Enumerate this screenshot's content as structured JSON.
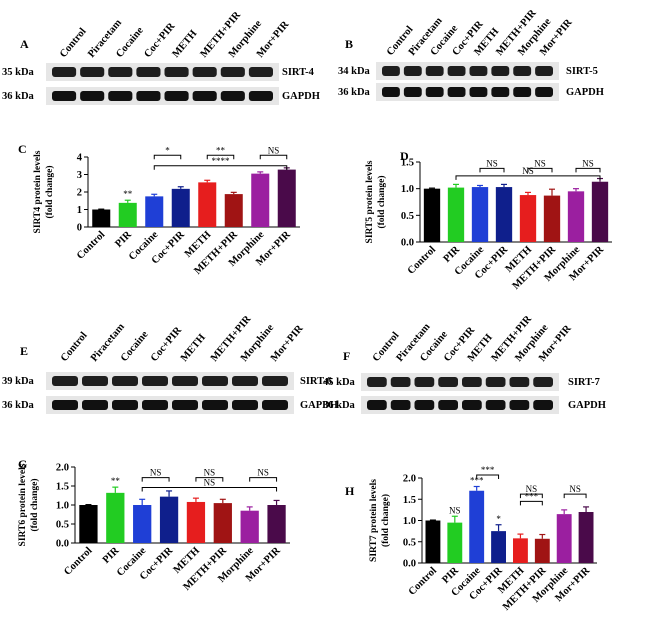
{
  "blots": [
    {
      "letter": "A",
      "lanes": [
        "Control",
        "Piracetam",
        "Cocaine",
        "Coc+PIR",
        "METH",
        "METH+PIR",
        "Morphine",
        "Mor+PIR"
      ],
      "rows": [
        {
          "kda": "35 kDa",
          "protein": "SIRT-4"
        },
        {
          "kda": "36 kDa",
          "protein": "GAPDH"
        }
      ]
    },
    {
      "letter": "B",
      "lanes": [
        "Control",
        "Piracetam",
        "Cocaine",
        "Coc+PIR",
        "METH",
        "METH+PIR",
        "Morphine",
        "Mor+PIR"
      ],
      "rows": [
        {
          "kda": "34 kDa",
          "protein": "SIRT-5"
        },
        {
          "kda": "36 kDa",
          "protein": "GAPDH"
        }
      ]
    },
    {
      "letter": "E",
      "lanes": [
        "Control",
        "Piracetam",
        "Cocaine",
        "Coc+PIR",
        "METH",
        "METH+PIR",
        "Morphine",
        "Mor+PIR"
      ],
      "rows": [
        {
          "kda": "39 kDa",
          "protein": "SIRT-6"
        },
        {
          "kda": "36 kDa",
          "protein": "GAPDH"
        }
      ]
    },
    {
      "letter": "F",
      "lanes": [
        "Control",
        "Piracetam",
        "Cocaine",
        "Coc+PIR",
        "METH",
        "METH+PIR",
        "Morphine",
        "Mor+PIR"
      ],
      "rows": [
        {
          "kda": "45 kDa",
          "protein": "SIRT-7"
        },
        {
          "kda": "36 kDa",
          "protein": "GAPDH"
        }
      ]
    }
  ],
  "chart_data": [
    {
      "type": "bar",
      "letter": "C",
      "y_label": [
        "SIRT4 protein levels",
        "(fold change)"
      ],
      "categories": [
        "Control",
        "PIR",
        "Cocaine",
        "Coc+PIR",
        "METH",
        "METH+PIR",
        "Morphine",
        "Mor+PIR"
      ],
      "values": [
        1,
        1.38,
        1.75,
        2.18,
        2.55,
        1.88,
        3.05,
        3.28
      ],
      "errors": [
        0.02,
        0.15,
        0.12,
        0.12,
        0.12,
        0.1,
        0.1,
        0.1
      ],
      "colors": [
        "#000000",
        "#22cc22",
        "#1f3fd6",
        "#0f1f8c",
        "#e61e1e",
        "#a01414",
        "#9b1fa0",
        "#4a0a4a"
      ],
      "bar_labels": [
        null,
        "**",
        null,
        null,
        null,
        null,
        null,
        null
      ],
      "brackets": [
        "*",
        "**",
        "NS",
        "****"
      ],
      "ylim": [
        0,
        4
      ],
      "yticks": [
        0,
        1,
        2,
        3,
        4
      ]
    },
    {
      "type": "bar",
      "letter": "D",
      "y_label": [
        "SIRT5 protein levels",
        "(fold change)"
      ],
      "categories": [
        "Control",
        "PIR",
        "Cocaine",
        "Coc+PIR",
        "METH",
        "METH+PIR",
        "Morphine",
        "Mor+PIR"
      ],
      "values": [
        1,
        1.02,
        1.03,
        1.03,
        0.88,
        0.87,
        0.95,
        1.13
      ],
      "errors": [
        0.01,
        0.06,
        0.03,
        0.05,
        0.05,
        0.12,
        0.05,
        0.06
      ],
      "colors": [
        "#000000",
        "#22cc22",
        "#1f3fd6",
        "#0f1f8c",
        "#e61e1e",
        "#a01414",
        "#9b1fa0",
        "#4a0a4a"
      ],
      "bar_labels": [
        null,
        null,
        null,
        null,
        null,
        null,
        null,
        null
      ],
      "brackets": [
        "NS",
        "NS",
        "NS",
        "NS"
      ],
      "ylim": [
        0,
        1.5
      ],
      "yticks": [
        {
          "value": 0,
          "label": "0.0"
        },
        {
          "value": 0.5,
          "label": "0.5"
        },
        {
          "value": 1,
          "label": "1.0"
        },
        {
          "value": 1.5,
          "label": "1.5"
        }
      ]
    },
    {
      "type": "bar",
      "letter": "G",
      "y_label": [
        "SIRT6 protein levels",
        "(fold change)"
      ],
      "categories": [
        "Control",
        "PIR",
        "Cocaine",
        "Coc+PIR",
        "METH",
        "METH+PIR",
        "Morphine",
        "Mor+PIR"
      ],
      "values": [
        1,
        1.32,
        1.0,
        1.22,
        1.08,
        1.05,
        0.85,
        1.0
      ],
      "errors": [
        0.01,
        0.15,
        0.15,
        0.15,
        0.1,
        0.1,
        0.1,
        0.12
      ],
      "colors": [
        "#000000",
        "#22cc22",
        "#1f3fd6",
        "#0f1f8c",
        "#e61e1e",
        "#a01414",
        "#9b1fa0",
        "#4a0a4a"
      ],
      "bar_labels": [
        null,
        "**",
        null,
        null,
        null,
        null,
        null,
        null
      ],
      "brackets": [
        "NS",
        "NS",
        "NS",
        "NS"
      ],
      "ylim": [
        0,
        2
      ],
      "yticks": [
        {
          "value": 0,
          "label": "0.0"
        },
        {
          "value": 0.5,
          "label": "0.5"
        },
        {
          "value": 1,
          "label": "1.0"
        },
        {
          "value": 1.5,
          "label": "1.5"
        },
        {
          "value": 2,
          "label": "2.0"
        }
      ]
    },
    {
      "type": "bar",
      "letter": "H",
      "y_label": [
        "SIRT7 protein levels",
        "(fold change)"
      ],
      "categories": [
        "Control",
        "PIR",
        "Cocaine",
        "Coc+PIR",
        "METH",
        "METH+PIR",
        "Morphine",
        "Mor+PIR"
      ],
      "values": [
        1,
        0.95,
        1.7,
        0.75,
        0.58,
        0.57,
        1.15,
        1.2
      ],
      "errors": [
        0.01,
        0.15,
        0.1,
        0.15,
        0.1,
        0.1,
        0.1,
        0.12
      ],
      "colors": [
        "#000000",
        "#22cc22",
        "#1f3fd6",
        "#0f1f8c",
        "#e61e1e",
        "#a01414",
        "#9b1fa0",
        "#4a0a4a"
      ],
      "bar_labels": [
        null,
        "NS",
        "***",
        "*",
        null,
        null,
        null,
        null
      ],
      "brackets": [
        "***",
        "NS",
        "***",
        "NS"
      ],
      "ylim": [
        0,
        2
      ],
      "yticks": [
        {
          "value": 0,
          "label": "0.0"
        },
        {
          "value": 0.5,
          "label": "0.5"
        },
        {
          "value": 1,
          "label": "1.0"
        },
        {
          "value": 1.5,
          "label": "1.5"
        },
        {
          "value": 2,
          "label": "2.0"
        }
      ]
    }
  ]
}
